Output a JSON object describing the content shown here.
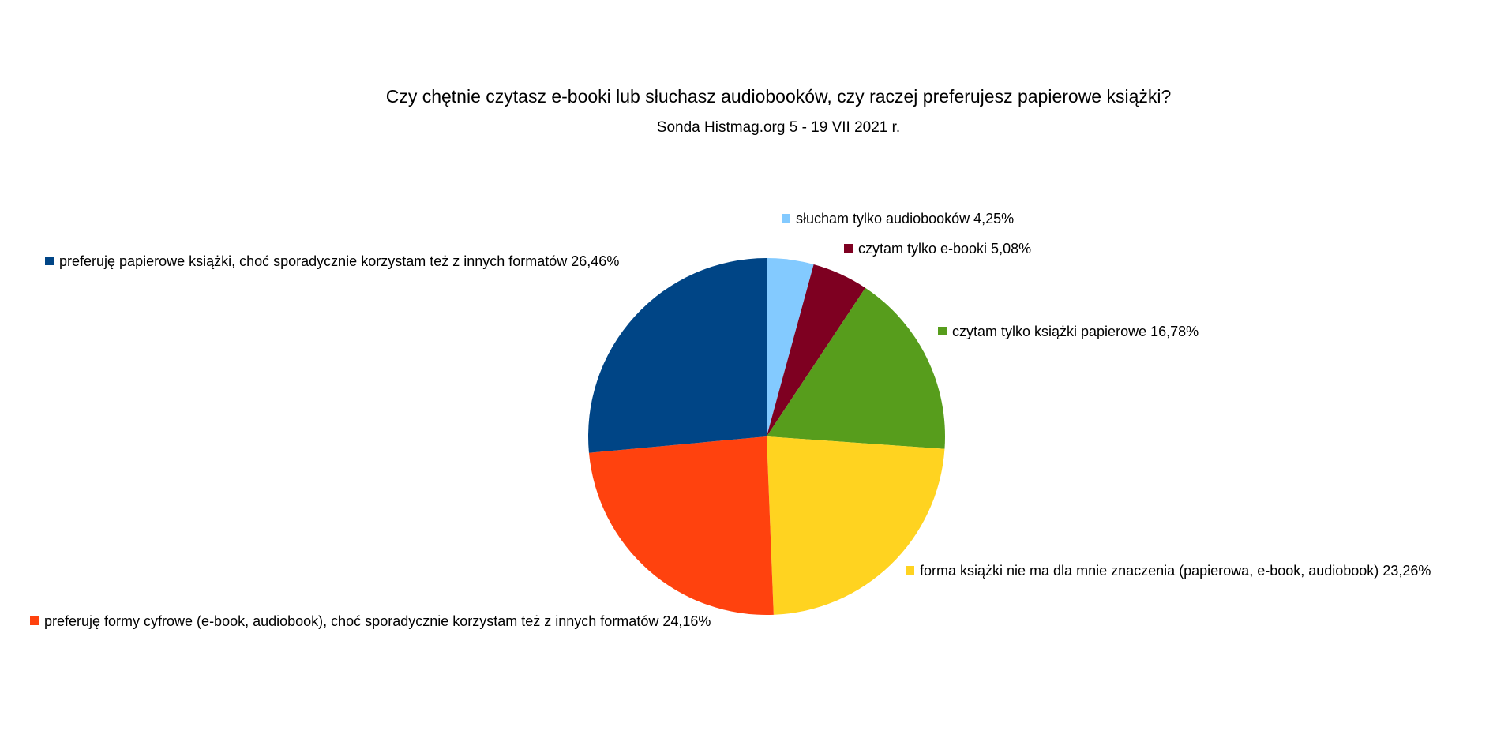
{
  "chart_data": {
    "type": "pie",
    "title": "Czy chętnie czytasz e-booki lub słuchasz audiobooków, czy raczej preferujesz papierowe książki?",
    "subtitle": "Sonda Histmag.org 5 - 19 VII 2021 r.",
    "legend_placement": "labels beside slices",
    "start_angle": "12 o'clock, clockwise",
    "slices": [
      {
        "label": "słucham tylko audiobooków 4,25%",
        "value": 4.25,
        "color": "#83caff"
      },
      {
        "label": "czytam tylko e-booki 5,08%",
        "value": 5.08,
        "color": "#7e0021"
      },
      {
        "label": "czytam tylko książki papierowe 16,78%",
        "value": 16.78,
        "color": "#579d1c"
      },
      {
        "label": "forma książki nie ma dla mnie znaczenia (papierowa, e-book, audiobook) 23,26%",
        "value": 23.26,
        "color": "#ffd320"
      },
      {
        "label": "preferuję formy cyfrowe (e-book, audiobook), choć sporadycznie korzystam też z innych formatów 24,16%",
        "value": 24.16,
        "color": "#ff420e"
      },
      {
        "label": "preferuję papierowe książki, choć sporadycznie korzystam też z innych formatów  26,46%",
        "value": 26.46,
        "color": "#004586"
      }
    ]
  }
}
